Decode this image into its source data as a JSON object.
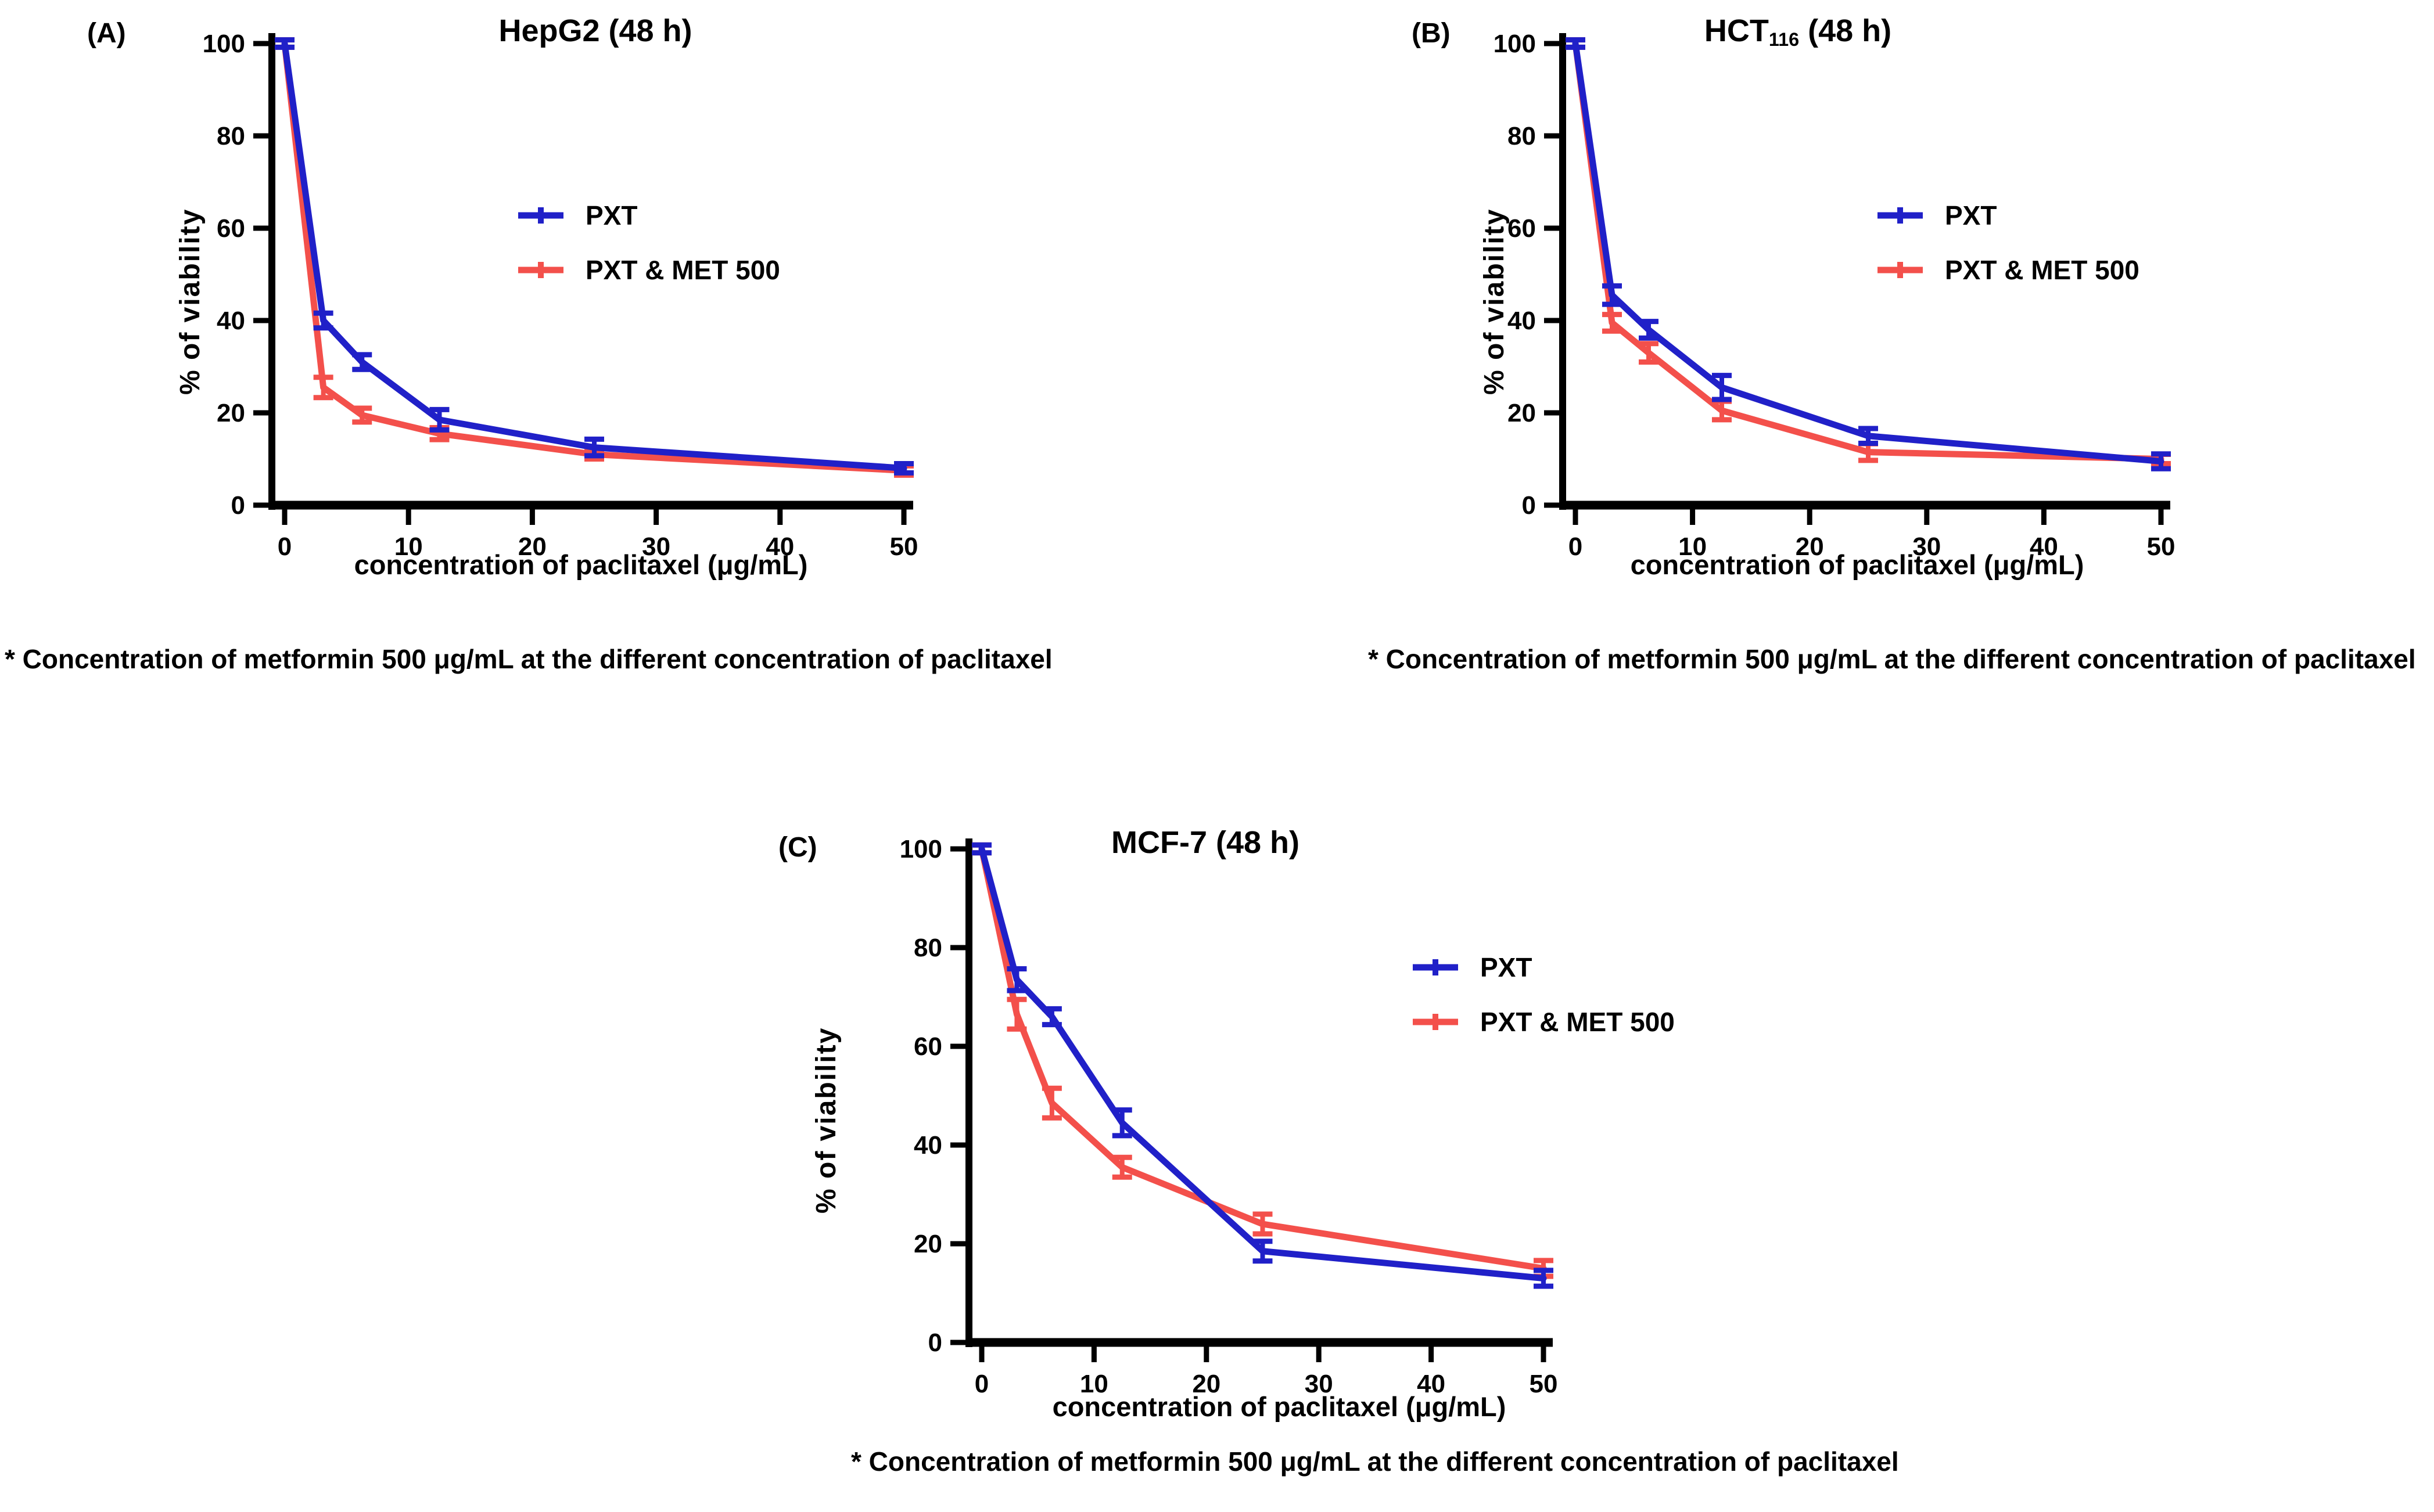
{
  "figure": {
    "background": "#ffffff",
    "footnote": "* Concentration of metformin 500 μg/mL at the different concentration of paclitaxel"
  },
  "colors": {
    "pxt_blue": "#2020c8",
    "pxt_met_red": "#f3504b",
    "axis_black": "#000000"
  },
  "panel_meta": [
    {
      "panel_label": "(A)",
      "title_prefix": "HepG2 (48 h)",
      "title_sub": "",
      "title_suffix": ""
    },
    {
      "panel_label": "(B)",
      "title_prefix": "HCT",
      "title_sub": "116",
      "title_suffix": " (48 h)"
    },
    {
      "panel_label": "(C)",
      "title_prefix": "MCF-7 (48 h)",
      "title_sub": "",
      "title_suffix": ""
    }
  ],
  "chart_data": [
    {
      "type": "line",
      "title": "HepG2 (48 h)",
      "xlabel": "concentration of paclitaxel (μg/mL)",
      "ylabel": "% of viability",
      "x": [
        0,
        3.125,
        6.25,
        12.5,
        25,
        50
      ],
      "x_ticks": [
        0,
        10,
        20,
        30,
        40,
        50
      ],
      "xlim": [
        0,
        50
      ],
      "y_ticks": [
        0,
        20,
        40,
        60,
        80,
        100
      ],
      "ylim": [
        0,
        100
      ],
      "grid": false,
      "legend_position": "right-middle",
      "series": [
        {
          "name": "PXT",
          "color": "#2020c8",
          "values": [
            100,
            40,
            31,
            18.5,
            12.5,
            8
          ],
          "errors": [
            0.8,
            1.6,
            1.6,
            2.2,
            1.8,
            1.0
          ]
        },
        {
          "name": "PXT & MET 500",
          "color": "#f3504b",
          "values": [
            100,
            25.5,
            19.5,
            15.5,
            11,
            7.5
          ],
          "errors": [
            0.8,
            2.2,
            1.5,
            1.3,
            1.0,
            1.0
          ]
        }
      ]
    },
    {
      "type": "line",
      "title": "HCT116 (48 h)",
      "xlabel": "concentration of paclitaxel (μg/mL)",
      "ylabel": "% of viability",
      "x": [
        0,
        3.125,
        6.25,
        12.5,
        25,
        50
      ],
      "x_ticks": [
        0,
        10,
        20,
        30,
        40,
        50
      ],
      "xlim": [
        0,
        50
      ],
      "y_ticks": [
        0,
        20,
        40,
        60,
        80,
        100
      ],
      "ylim": [
        0,
        100
      ],
      "grid": false,
      "legend_position": "right-middle",
      "series": [
        {
          "name": "PXT",
          "color": "#2020c8",
          "values": [
            100,
            45.5,
            38,
            25.5,
            15,
            9.5
          ],
          "errors": [
            0.8,
            2.0,
            1.8,
            2.6,
            1.6,
            1.6
          ]
        },
        {
          "name": "PXT & MET 500",
          "color": "#f3504b",
          "values": [
            100,
            39.5,
            33,
            20.5,
            11.5,
            10
          ],
          "errors": [
            0.8,
            1.8,
            2.0,
            2.0,
            1.8,
            1.0
          ]
        }
      ]
    },
    {
      "type": "line",
      "title": "MCF-7 (48 h)",
      "xlabel": "concentration of paclitaxel (μg/mL)",
      "ylabel": "% of viability",
      "x": [
        0,
        3.125,
        6.25,
        12.5,
        25,
        50
      ],
      "x_ticks": [
        0,
        10,
        20,
        30,
        40,
        50
      ],
      "xlim": [
        0,
        50
      ],
      "y_ticks": [
        0,
        20,
        40,
        60,
        80,
        100
      ],
      "ylim": [
        0,
        100
      ],
      "grid": false,
      "legend_position": "right-middle",
      "series": [
        {
          "name": "PXT",
          "color": "#2020c8",
          "values": [
            100,
            73.5,
            66,
            44.5,
            18.5,
            13
          ],
          "errors": [
            0.8,
            2.2,
            1.6,
            2.6,
            2.0,
            1.6
          ]
        },
        {
          "name": "PXT & MET 500",
          "color": "#f3504b",
          "values": [
            100,
            66.5,
            48.5,
            35.5,
            24,
            15
          ],
          "errors": [
            0.8,
            3.0,
            3.0,
            2.0,
            2.0,
            1.6
          ]
        }
      ]
    }
  ]
}
